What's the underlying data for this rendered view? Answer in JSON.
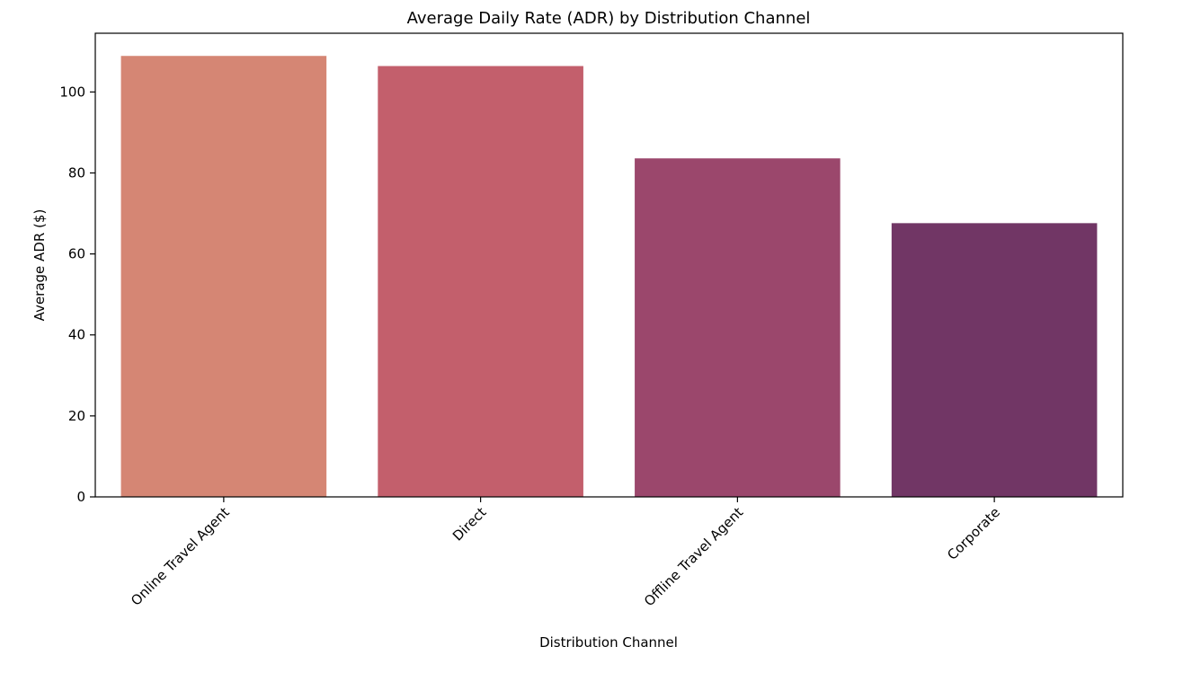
{
  "chart_data": {
    "type": "bar",
    "title": "Average Daily Rate (ADR) by Distribution Channel",
    "xlabel": "Distribution Channel",
    "ylabel": "Average ADR ($)",
    "categories": [
      "Online Travel Agent",
      "Direct",
      "Offline Travel Agent",
      "Corporate"
    ],
    "values": [
      108.9,
      106.4,
      83.6,
      67.6
    ],
    "colors": [
      "#d58674",
      "#c35f6c",
      "#9b476c",
      "#713665"
    ],
    "ylim": [
      0,
      114.5
    ],
    "yticks": [
      0,
      20,
      40,
      60,
      80,
      100
    ],
    "ytick_labels": [
      "0",
      "20",
      "40",
      "60",
      "80",
      "100"
    ],
    "grid": false,
    "legend": "none"
  }
}
